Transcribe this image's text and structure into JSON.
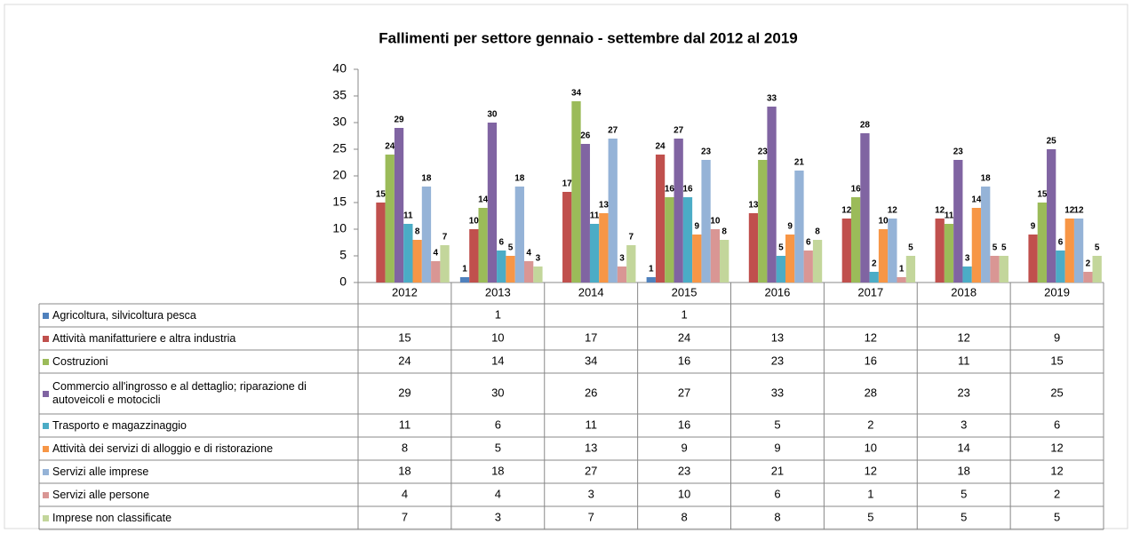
{
  "chart_data": {
    "type": "bar",
    "title": "Fallimenti per settore gennaio - settembre dal 2012  al 2019",
    "categories": [
      "2012",
      "2013",
      "2014",
      "2015",
      "2016",
      "2017",
      "2018",
      "2019"
    ],
    "ylim": [
      0,
      40
    ],
    "yticks": [
      0,
      5,
      10,
      15,
      20,
      25,
      30,
      35,
      40
    ],
    "series": [
      {
        "name": "Agricoltura, silvicoltura pesca",
        "color": "#4f81bd",
        "values": [
          null,
          1,
          null,
          1,
          null,
          null,
          null,
          null
        ]
      },
      {
        "name": "Attività manifatturiere e altra industria",
        "color": "#c0504d",
        "values": [
          15,
          10,
          17,
          24,
          13,
          12,
          12,
          9
        ]
      },
      {
        "name": "Costruzioni",
        "color": "#9bbb59",
        "values": [
          24,
          14,
          34,
          16,
          23,
          16,
          11,
          15
        ]
      },
      {
        "name": "Commercio all'ingrosso e al dettaglio; riparazione di autoveicoli e motocicli",
        "color": "#8064a2",
        "values": [
          29,
          30,
          26,
          27,
          33,
          28,
          23,
          25
        ]
      },
      {
        "name": "Trasporto e magazzinaggio",
        "color": "#4bacc6",
        "values": [
          11,
          6,
          11,
          16,
          5,
          2,
          3,
          6
        ]
      },
      {
        "name": "Attività dei servizi di alloggio e di ristorazione",
        "color": "#f79646",
        "values": [
          8,
          5,
          13,
          9,
          9,
          10,
          14,
          12
        ]
      },
      {
        "name": "Servizi alle imprese",
        "color": "#95b3d7",
        "values": [
          18,
          18,
          27,
          23,
          21,
          12,
          18,
          12
        ]
      },
      {
        "name": "Servizi alle persone",
        "color": "#d99694",
        "values": [
          4,
          4,
          3,
          10,
          6,
          1,
          5,
          2
        ]
      },
      {
        "name": "Imprese non classificate",
        "color": "#c3d69b",
        "values": [
          7,
          3,
          7,
          8,
          8,
          5,
          5,
          5
        ]
      }
    ]
  }
}
